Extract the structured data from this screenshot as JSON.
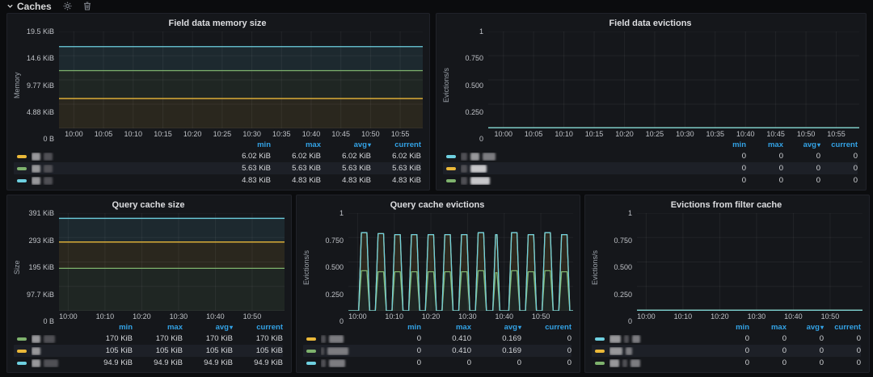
{
  "row_header": {
    "title": "Caches",
    "collapse_icon": "chevron-down-icon",
    "actions": [
      {
        "icon": "gear-icon"
      },
      {
        "icon": "trash-icon"
      }
    ]
  },
  "colors": {
    "yellow": "#EAB839",
    "green": "#7EB26D",
    "cyan": "#6ED0E0",
    "legend_header_blue": "#33A2E5",
    "panel_bg": "#15171b",
    "page_bg": "#0b0c0e"
  },
  "legend_header": {
    "columns": [
      "min",
      "max",
      "avg",
      "current"
    ],
    "sorted_column": "avg",
    "sort_indicator": "▾"
  },
  "x_domain": {
    "start_min": -2.5,
    "end_min": 58.8,
    "origin_label": "10:00"
  },
  "chart_data": [
    {
      "id": "field-data-memory-size",
      "type": "stacked-flat",
      "title": "Field data memory size",
      "ylabel": "Memory",
      "ylim": [
        "0 B",
        "19.5 KiB"
      ],
      "y_ticks": [
        "0 B",
        "4.88 KiB",
        "9.77 KiB",
        "14.6 KiB",
        "19.5 KiB"
      ],
      "x_ticks": [
        {
          "label": "10:00",
          "min": 0
        },
        {
          "label": "10:05",
          "min": 5
        },
        {
          "label": "10:10",
          "min": 10
        },
        {
          "label": "10:15",
          "min": 15
        },
        {
          "label": "10:20",
          "min": 20
        },
        {
          "label": "10:25",
          "min": 25
        },
        {
          "label": "10:30",
          "min": 30
        },
        {
          "label": "10:35",
          "min": 35
        },
        {
          "label": "10:40",
          "min": 40
        },
        {
          "label": "10:45",
          "min": 45
        },
        {
          "label": "10:50",
          "min": 50
        },
        {
          "label": "10:55",
          "min": 55
        }
      ],
      "series_levels": [
        {
          "color": "yellow",
          "value": "6.02 KiB",
          "stack_frac": 0.308
        },
        {
          "color": "green",
          "value": "5.63 KiB",
          "stack_frac": 0.596
        },
        {
          "color": "cyan",
          "value": "4.83 KiB",
          "stack_frac": 0.844
        }
      ],
      "legend_rows": [
        {
          "color": "yellow",
          "name_redacted": true,
          "chips": [
            [
              "light",
              11
            ],
            [
              "dark",
              11
            ]
          ],
          "stats": [
            "6.02 KiB",
            "6.02 KiB",
            "6.02 KiB",
            "6.02 KiB"
          ]
        },
        {
          "color": "green",
          "name_redacted": true,
          "chips": [
            [
              "light",
              11
            ],
            [
              "dark",
              11
            ]
          ],
          "stats": [
            "5.63 KiB",
            "5.63 KiB",
            "5.63 KiB",
            "5.63 KiB"
          ]
        },
        {
          "color": "cyan",
          "name_redacted": true,
          "chips": [
            [
              "light",
              11
            ],
            [
              "dark",
              11
            ]
          ],
          "stats": [
            "4.83 KiB",
            "4.83 KiB",
            "4.83 KiB",
            "4.83 KiB"
          ]
        }
      ]
    },
    {
      "id": "field-data-evictions",
      "type": "flat-zero",
      "title": "Field data evictions",
      "ylabel": "Evictions/s",
      "ylim": [
        0,
        1
      ],
      "y_ticks": [
        "0",
        "0.250",
        "0.500",
        "0.750",
        "1"
      ],
      "x_ticks": [
        {
          "label": "10:00",
          "min": 0
        },
        {
          "label": "10:05",
          "min": 5
        },
        {
          "label": "10:10",
          "min": 10
        },
        {
          "label": "10:15",
          "min": 15
        },
        {
          "label": "10:20",
          "min": 20
        },
        {
          "label": "10:25",
          "min": 25
        },
        {
          "label": "10:30",
          "min": 30
        },
        {
          "label": "10:35",
          "min": 35
        },
        {
          "label": "10:40",
          "min": 40
        },
        {
          "label": "10:45",
          "min": 45
        },
        {
          "label": "10:50",
          "min": 50
        },
        {
          "label": "10:55",
          "min": 55
        }
      ],
      "zero_line_colors": [
        "green",
        "yellow",
        "cyan"
      ],
      "legend_rows": [
        {
          "color": "cyan",
          "name_redacted": true,
          "chips": [
            [
              "dark",
              8
            ],
            [
              "light",
              11
            ],
            [
              "mid",
              16
            ]
          ],
          "stats": [
            "0",
            "0",
            "0",
            "0"
          ]
        },
        {
          "color": "yellow",
          "name_redacted": true,
          "chips": [
            [
              "dark",
              8
            ],
            [
              "white",
              20
            ]
          ],
          "stats": [
            "0",
            "0",
            "0",
            "0"
          ]
        },
        {
          "color": "green",
          "name_redacted": true,
          "chips": [
            [
              "dark",
              8
            ],
            [
              "white",
              24
            ]
          ],
          "stats": [
            "0",
            "0",
            "0",
            "0"
          ]
        }
      ]
    },
    {
      "id": "query-cache-size",
      "type": "stacked-flat",
      "title": "Query cache size",
      "ylabel": "Size",
      "ylim": [
        "0 B",
        "391 KiB"
      ],
      "y_ticks": [
        "0 B",
        "97.7 KiB",
        "195 KiB",
        "293 KiB",
        "391 KiB"
      ],
      "x_ticks": [
        {
          "label": "10:00",
          "min": 0
        },
        {
          "label": "10:10",
          "min": 10
        },
        {
          "label": "10:20",
          "min": 20
        },
        {
          "label": "10:30",
          "min": 30
        },
        {
          "label": "10:40",
          "min": 40
        },
        {
          "label": "10:50",
          "min": 50
        }
      ],
      "series_levels": [
        {
          "color": "green",
          "value": "170 KiB",
          "stack_frac": 0.435
        },
        {
          "color": "yellow",
          "value": "105 KiB",
          "stack_frac": 0.704
        },
        {
          "color": "cyan",
          "value": "94.9 KiB",
          "stack_frac": 0.947
        }
      ],
      "legend_rows": [
        {
          "color": "green",
          "name_redacted": true,
          "chips": [
            [
              "light",
              11
            ],
            [
              "dark",
              14
            ]
          ],
          "stats": [
            "170 KiB",
            "170 KiB",
            "170 KiB",
            "170 KiB"
          ]
        },
        {
          "color": "yellow",
          "name_redacted": true,
          "chips": [
            [
              "light",
              11
            ]
          ],
          "stats": [
            "105 KiB",
            "105 KiB",
            "105 KiB",
            "105 KiB"
          ]
        },
        {
          "color": "cyan",
          "name_redacted": true,
          "chips": [
            [
              "light",
              11
            ],
            [
              "dark",
              18
            ]
          ],
          "stats": [
            "94.9 KiB",
            "94.9 KiB",
            "94.9 KiB",
            "94.9 KiB"
          ]
        }
      ]
    },
    {
      "id": "query-cache-evictions",
      "type": "pulses",
      "title": "Query cache evictions",
      "ylabel": "Evictions/s",
      "ylim": [
        0,
        1
      ],
      "y_ticks": [
        "0",
        "0.250",
        "0.500",
        "0.750",
        "1"
      ],
      "x_ticks": [
        {
          "label": "10:00",
          "min": 0
        },
        {
          "label": "10:10",
          "min": 10
        },
        {
          "label": "10:20",
          "min": 20
        },
        {
          "label": "10:30",
          "min": 30
        },
        {
          "label": "10:40",
          "min": 40
        },
        {
          "label": "10:50",
          "min": 50
        }
      ],
      "pulse_shape": {
        "rise_min": 0.75,
        "flat_min": 1.5,
        "fall_min": 0.75
      },
      "pulses": [
        {
          "start": 0.3,
          "mid": 0.41,
          "top": 0.8
        },
        {
          "start": 4.85,
          "mid": 0.4,
          "top": 0.79
        },
        {
          "start": 9.4,
          "mid": 0.4,
          "top": 0.78
        },
        {
          "start": 13.95,
          "mid": 0.4,
          "top": 0.78
        },
        {
          "start": 18.5,
          "mid": 0.4,
          "top": 0.78
        },
        {
          "start": 23.05,
          "mid": 0.4,
          "top": 0.78
        },
        {
          "start": 27.6,
          "mid": 0.4,
          "top": 0.78
        },
        {
          "start": 32.15,
          "mid": 0.41,
          "top": 0.8
        },
        {
          "start": 36.9,
          "mid": 0.39,
          "top": 0.78,
          "flat": 0.4
        },
        {
          "start": 41.25,
          "mid": 0.41,
          "top": 0.8
        },
        {
          "start": 45.8,
          "mid": 0.4,
          "top": 0.78
        },
        {
          "start": 50.35,
          "mid": 0.41,
          "top": 0.8
        },
        {
          "start": 54.9,
          "mid": 0.4,
          "top": 0.78
        }
      ],
      "stack_colors": {
        "bottom": "green",
        "band": "yellow",
        "edge": "cyan"
      },
      "legend_rows": [
        {
          "color": "yellow",
          "name_redacted": true,
          "chips": [
            [
              "dark",
              6
            ],
            [
              "mid",
              18
            ]
          ],
          "stats": [
            "0",
            "0.410",
            "0.169",
            "0"
          ]
        },
        {
          "color": "green",
          "name_redacted": true,
          "chips": [
            [
              "dark",
              4
            ],
            [
              "mid",
              26
            ]
          ],
          "stats": [
            "0",
            "0.410",
            "0.169",
            "0"
          ]
        },
        {
          "color": "cyan",
          "name_redacted": true,
          "chips": [
            [
              "dark",
              6
            ],
            [
              "mid",
              20
            ]
          ],
          "stats": [
            "0",
            "0",
            "0",
            "0"
          ]
        }
      ]
    },
    {
      "id": "evictions-from-filter-cache",
      "type": "flat-zero",
      "title": "Evictions from filter cache",
      "ylabel": "Evictions/s",
      "ylim": [
        0,
        1
      ],
      "y_ticks": [
        "0",
        "0.250",
        "0.500",
        "0.750",
        "1"
      ],
      "x_ticks": [
        {
          "label": "10:00",
          "min": 0
        },
        {
          "label": "10:10",
          "min": 10
        },
        {
          "label": "10:20",
          "min": 20
        },
        {
          "label": "10:30",
          "min": 30
        },
        {
          "label": "10:40",
          "min": 40
        },
        {
          "label": "10:50",
          "min": 50
        }
      ],
      "zero_line_colors": [
        "green",
        "yellow",
        "cyan"
      ],
      "legend_rows": [
        {
          "color": "cyan",
          "name_redacted": true,
          "chips": [
            [
              "light",
              14
            ],
            [
              "dark",
              6
            ],
            [
              "mid",
              10
            ]
          ],
          "stats": [
            "0",
            "0",
            "0",
            "0"
          ]
        },
        {
          "color": "yellow",
          "name_redacted": true,
          "chips": [
            [
              "light",
              16
            ],
            [
              "mid",
              8
            ]
          ],
          "stats": [
            "0",
            "0",
            "0",
            "0"
          ]
        },
        {
          "color": "green",
          "name_redacted": true,
          "chips": [
            [
              "light",
              12
            ],
            [
              "dark",
              6
            ],
            [
              "mid",
              12
            ]
          ],
          "stats": [
            "0",
            "0",
            "0",
            "0"
          ]
        }
      ]
    }
  ]
}
